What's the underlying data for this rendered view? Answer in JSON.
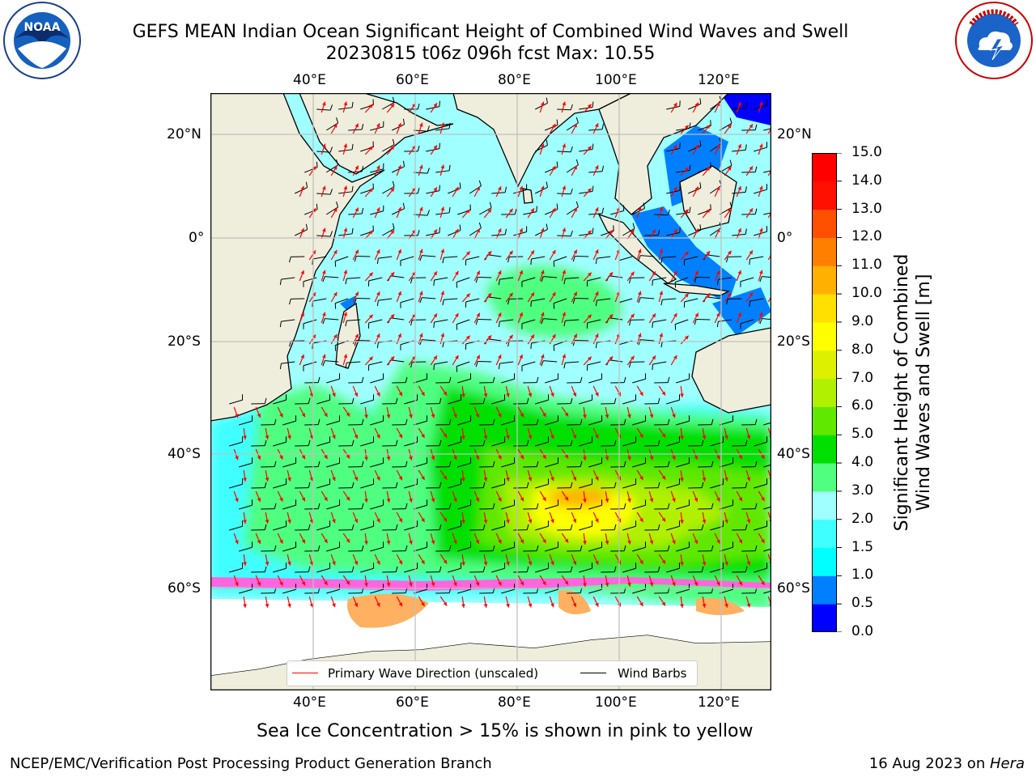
{
  "header": {
    "title_line1": "GEFS MEAN Indian Ocean Significant Height of Combined Wind Waves and Swell",
    "title_line2": "20230815 t06z 096h fcst   Max: 10.55"
  },
  "logos": {
    "left": {
      "name": "NOAA",
      "text": "NOAA",
      "ring_text": "NATIONAL OCEANIC AND ATMOSPHERIC ADMINISTRATION · U.S. DEPARTMENT OF COMMERCE"
    },
    "right": {
      "name": "National Weather Service",
      "ring_text": "NATIONAL WEATHER SERVICE"
    }
  },
  "map": {
    "projection": "cylindrical",
    "lon_range": [
      20,
      130
    ],
    "lat_range": [
      -72,
      28
    ],
    "lon_ticks": [
      "40°E",
      "60°E",
      "80°E",
      "100°E",
      "120°E"
    ],
    "lat_ticks_left": [
      "20°N",
      "0°",
      "20°S",
      "40°S",
      "60°S"
    ],
    "lat_ticks_right": [
      "20°N",
      "0°",
      "20°S",
      "40°S",
      "60°S"
    ],
    "gridlines": true,
    "colors": {
      "land": "#efeedc",
      "ice": "#ffffff",
      "grid": "#bfbfbf",
      "wave_arrow": "#ff0000",
      "wind_barb": "#000000"
    }
  },
  "legend": {
    "placement": "bottom-center",
    "wave_label": "Primary Wave Direction (unscaled)",
    "wind_label": "Wind Barbs",
    "wave_color": "#ff0000",
    "wind_color": "#000000"
  },
  "colorbar": {
    "title_line1": "Significant Height of Combined",
    "title_line2": "Wind Waves and Swell [m]",
    "min": 0,
    "max": 15,
    "tick_labels": [
      "0.0",
      "0.5",
      "1.0",
      "1.5",
      "2.0",
      "3.0",
      "4.0",
      "5.0",
      "6.0",
      "7.0",
      "8.0",
      "9.0",
      "10.0",
      "11.0",
      "12.0",
      "13.0",
      "14.0",
      "15.0"
    ],
    "bin_colors": [
      "#0000ff",
      "#0080ff",
      "#00ffff",
      "#40ffff",
      "#a0ffff",
      "#50ff80",
      "#00e000",
      "#60e800",
      "#b0f000",
      "#ddf000",
      "#ffff00",
      "#ffe000",
      "#ffb000",
      "#ff8000",
      "#ff5000",
      "#ff1000",
      "#ff0000"
    ]
  },
  "caption": "Sea Ice Concentration > 15% is shown in pink to yellow",
  "footer": {
    "left": "NCEP/EMC/Verification Post Processing Product Generation Branch",
    "right_prefix": "16 Aug 2023 on ",
    "right_host": "Hera"
  }
}
